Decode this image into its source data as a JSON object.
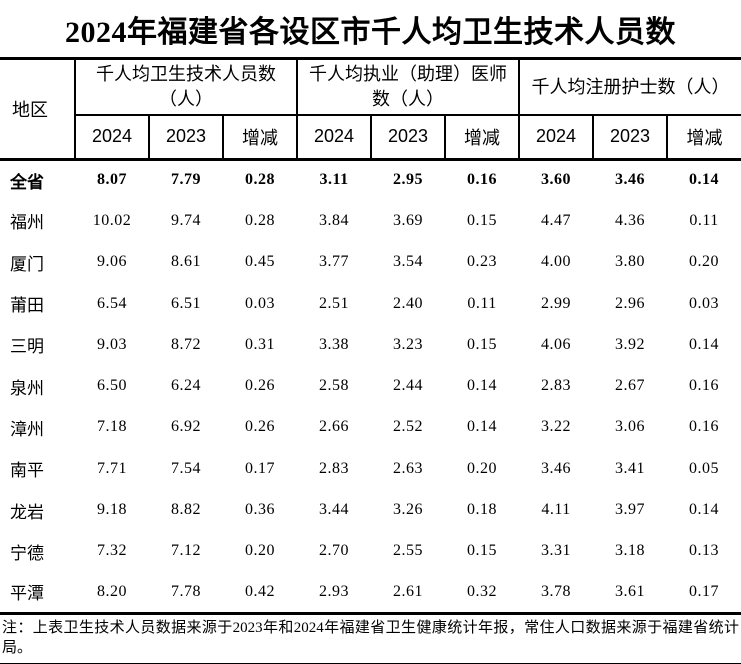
{
  "title": "2024年福建省各设区市千人均卫生技术人员数",
  "colors": {
    "text": "#000000",
    "background": "#ffffff",
    "rule": "#000000"
  },
  "table": {
    "region_header": "地区",
    "groups": [
      {
        "label": "千人均卫生技术人员数（人）"
      },
      {
        "label": "千人均执业（助理）医师数（人）"
      },
      {
        "label": "千人均注册护士数（人）"
      }
    ],
    "sub_headers": [
      "2024",
      "2023",
      "增减"
    ],
    "rows": [
      {
        "region": "全省",
        "bold": true,
        "values": [
          "8.07",
          "7.79",
          "0.28",
          "3.11",
          "2.95",
          "0.16",
          "3.60",
          "3.46",
          "0.14"
        ]
      },
      {
        "region": "福州",
        "bold": false,
        "values": [
          "10.02",
          "9.74",
          "0.28",
          "3.84",
          "3.69",
          "0.15",
          "4.47",
          "4.36",
          "0.11"
        ]
      },
      {
        "region": "厦门",
        "bold": false,
        "values": [
          "9.06",
          "8.61",
          "0.45",
          "3.77",
          "3.54",
          "0.23",
          "4.00",
          "3.80",
          "0.20"
        ]
      },
      {
        "region": "莆田",
        "bold": false,
        "values": [
          "6.54",
          "6.51",
          "0.03",
          "2.51",
          "2.40",
          "0.11",
          "2.99",
          "2.96",
          "0.03"
        ]
      },
      {
        "region": "三明",
        "bold": false,
        "values": [
          "9.03",
          "8.72",
          "0.31",
          "3.38",
          "3.23",
          "0.15",
          "4.06",
          "3.92",
          "0.14"
        ]
      },
      {
        "region": "泉州",
        "bold": false,
        "values": [
          "6.50",
          "6.24",
          "0.26",
          "2.58",
          "2.44",
          "0.14",
          "2.83",
          "2.67",
          "0.16"
        ]
      },
      {
        "region": "漳州",
        "bold": false,
        "values": [
          "7.18",
          "6.92",
          "0.26",
          "2.66",
          "2.52",
          "0.14",
          "3.22",
          "3.06",
          "0.16"
        ]
      },
      {
        "region": "南平",
        "bold": false,
        "values": [
          "7.71",
          "7.54",
          "0.17",
          "2.83",
          "2.63",
          "0.20",
          "3.46",
          "3.41",
          "0.05"
        ]
      },
      {
        "region": "龙岩",
        "bold": false,
        "values": [
          "9.18",
          "8.82",
          "0.36",
          "3.44",
          "3.26",
          "0.18",
          "4.11",
          "3.97",
          "0.14"
        ]
      },
      {
        "region": "宁德",
        "bold": false,
        "values": [
          "7.32",
          "7.12",
          "0.20",
          "2.70",
          "2.55",
          "0.15",
          "3.31",
          "3.18",
          "0.13"
        ]
      },
      {
        "region": "平潭",
        "bold": false,
        "values": [
          "8.20",
          "7.78",
          "0.42",
          "2.93",
          "2.61",
          "0.32",
          "3.78",
          "3.61",
          "0.17"
        ]
      }
    ]
  },
  "footnote": "注：上表卫生技术人员数据来源于2023年和2024年福建省卫生健康统计年报，常住人口数据来源于福建省统计局。"
}
